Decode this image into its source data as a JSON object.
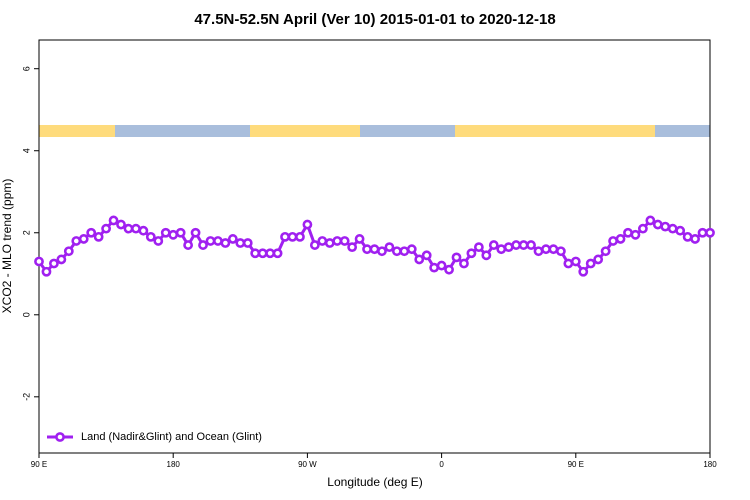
{
  "chart_data": {
    "type": "line",
    "title": "47.5N-52.5N April (Ver 10)   2015-01-01 to 2020-12-18",
    "x_label": "Longitude (deg E)",
    "y_label": "XCO2 - MLO trend (ppm)",
    "legend_position": "lower left",
    "x": [
      90,
      95,
      100,
      105,
      110,
      115,
      120,
      125,
      130,
      135,
      140,
      145,
      150,
      155,
      160,
      165,
      170,
      175,
      180,
      185,
      190,
      195,
      200,
      205,
      210,
      215,
      220,
      225,
      230,
      235,
      240,
      245,
      250,
      255,
      260,
      265,
      270,
      275,
      280,
      285,
      290,
      295,
      300,
      305,
      310,
      315,
      320,
      325,
      330,
      335,
      340,
      345,
      350,
      355,
      360,
      365,
      370,
      375,
      380,
      385,
      390,
      395,
      400,
      405,
      410,
      415,
      420,
      425,
      430,
      435,
      440,
      445,
      450,
      455,
      460,
      465,
      470,
      475,
      480,
      485,
      490,
      495,
      500,
      505,
      510,
      515,
      520,
      525,
      530,
      535,
      540
    ],
    "series": [
      {
        "name": "Land (Nadir&Glint) and Ocean (Glint)",
        "color": "#a020f0",
        "values": [
          1.3,
          1.05,
          1.25,
          1.35,
          1.55,
          1.8,
          1.85,
          2.0,
          1.9,
          2.1,
          2.3,
          2.2,
          2.1,
          2.1,
          2.05,
          1.9,
          1.8,
          2.0,
          1.95,
          2.0,
          1.7,
          2.0,
          1.7,
          1.8,
          1.8,
          1.75,
          1.85,
          1.75,
          1.75,
          1.5,
          1.5,
          1.5,
          1.5,
          1.9,
          1.9,
          1.9,
          2.2,
          1.7,
          1.8,
          1.75,
          1.8,
          1.8,
          1.65,
          1.85,
          1.6,
          1.6,
          1.55,
          1.65,
          1.55,
          1.55,
          1.6,
          1.35,
          1.45,
          1.15,
          1.2,
          1.1,
          1.4,
          1.25,
          1.5,
          1.65,
          1.45,
          1.7,
          1.6,
          1.65,
          1.7,
          1.7,
          1.7,
          1.55,
          1.6,
          1.6,
          1.55,
          1.25,
          1.3,
          1.05,
          1.25,
          1.35,
          1.55,
          1.8,
          1.85,
          2.0,
          1.95,
          2.1,
          2.3,
          2.2,
          2.15,
          2.1,
          2.05,
          1.9,
          1.85,
          2.0,
          2.0
        ]
      }
    ],
    "xlim": [
      90,
      540
    ],
    "xticks": [
      {
        "value": 90,
        "label": "90 E"
      },
      180,
      {
        "value": 270,
        "label": "90 W"
      },
      {
        "value": 360,
        "label": "0"
      },
      {
        "value": 450,
        "label": "90 E"
      },
      {
        "value": 540,
        "label": "180"
      }
    ],
    "ylim": [
      -3.37,
      6.7
    ],
    "yticks": [
      -2,
      0,
      2,
      4,
      6
    ]
  }
}
